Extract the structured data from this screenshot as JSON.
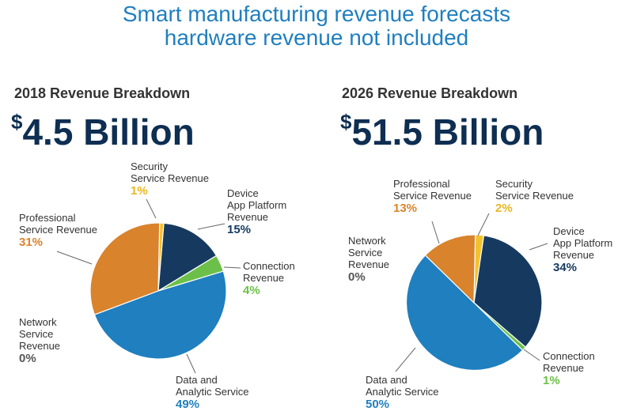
{
  "title": {
    "line1": "Smart manufacturing revenue forecasts",
    "line2": "hardware revenue not included"
  },
  "chart_data": [
    {
      "type": "pie",
      "title": "2018 Revenue Breakdown",
      "total_currency": "$",
      "total_value": "4.5 Billion",
      "slices": [
        {
          "key": "security",
          "label_lines": [
            "Security",
            "Service Revenue"
          ],
          "value": 1,
          "pct_label": "1%",
          "color": "#f2c12e",
          "pct_color": "#e8b71f"
        },
        {
          "key": "device",
          "label_lines": [
            "Device",
            "App Platform",
            "Revenue"
          ],
          "value": 15,
          "pct_label": "15%",
          "color": "#163a5f",
          "pct_color": "#163a5f"
        },
        {
          "key": "connection",
          "label_lines": [
            "Connection",
            "Revenue"
          ],
          "value": 4,
          "pct_label": "4%",
          "color": "#6cc04a",
          "pct_color": "#6cc04a"
        },
        {
          "key": "data",
          "label_lines": [
            "Data and",
            "Analytic Service"
          ],
          "value": 49,
          "pct_label": "49%",
          "color": "#1f7fbf",
          "pct_color": "#1f7fbf"
        },
        {
          "key": "network",
          "label_lines": [
            "Network",
            "Service",
            "Revenue"
          ],
          "value": 0,
          "pct_label": "0%",
          "color": "#888888",
          "pct_color": "#555555"
        },
        {
          "key": "professional",
          "label_lines": [
            "Professional",
            "Service Revenue"
          ],
          "value": 31,
          "pct_label": "31%",
          "color": "#d9832c",
          "pct_color": "#d9832c"
        }
      ]
    },
    {
      "type": "pie",
      "title": "2026 Revenue Breakdown",
      "total_currency": "$",
      "total_value": "51.5 Billion",
      "slices": [
        {
          "key": "security",
          "label_lines": [
            "Security",
            "Service Revenue"
          ],
          "value": 2,
          "pct_label": "2%",
          "color": "#f2c12e",
          "pct_color": "#e8b71f"
        },
        {
          "key": "device",
          "label_lines": [
            "Device",
            "App Platform",
            "Revenue"
          ],
          "value": 34,
          "pct_label": "34%",
          "color": "#163a5f",
          "pct_color": "#163a5f"
        },
        {
          "key": "connection",
          "label_lines": [
            "Connection",
            "Revenue"
          ],
          "value": 1,
          "pct_label": "1%",
          "color": "#6cc04a",
          "pct_color": "#6cc04a"
        },
        {
          "key": "data",
          "label_lines": [
            "Data and",
            "Analytic Service"
          ],
          "value": 50,
          "pct_label": "50%",
          "color": "#1f7fbf",
          "pct_color": "#1f7fbf"
        },
        {
          "key": "network",
          "label_lines": [
            "Network",
            "Service",
            "Revenue"
          ],
          "value": 0,
          "pct_label": "0%",
          "color": "#888888",
          "pct_color": "#555555"
        },
        {
          "key": "professional",
          "label_lines": [
            "Professional",
            "Service Revenue"
          ],
          "value": 13,
          "pct_label": "13%",
          "color": "#d9832c",
          "pct_color": "#d9832c"
        }
      ]
    }
  ]
}
